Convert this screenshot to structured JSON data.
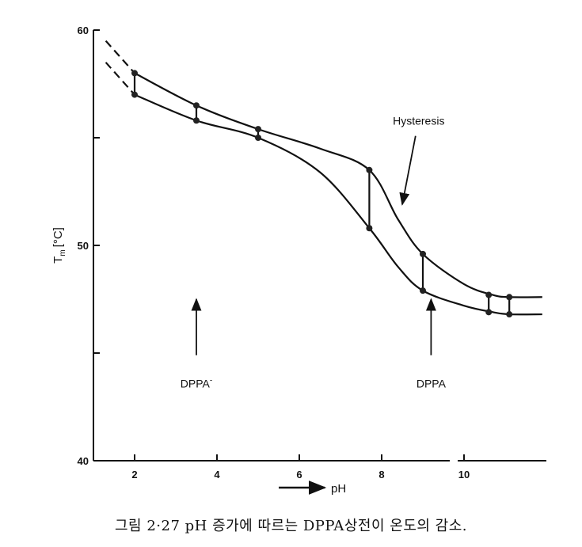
{
  "chart_data": {
    "type": "line",
    "xlabel": "pH",
    "ylabel": "T",
    "ylabel_sub": "m",
    "ylabel_unit": "[°C]",
    "xlim": [
      1,
      12
    ],
    "ylim": [
      40,
      60
    ],
    "x_ticks": [
      2,
      4,
      6,
      8,
      10
    ],
    "y_tick_labels": [
      40,
      50,
      60
    ],
    "y_minor_ticks": [
      45,
      55
    ],
    "grid": false,
    "series": [
      {
        "x": [
          1.3,
          2.0,
          3.5,
          5.0,
          6.5,
          7.7,
          8.4,
          9.0,
          10.0,
          10.7,
          11.1,
          11.9
        ],
        "y": [
          59.5,
          58.0,
          56.5,
          55.4,
          54.5,
          53.5,
          51.2,
          49.6,
          48.2,
          47.7,
          47.6,
          47.6
        ]
      },
      {
        "x": [
          1.3,
          2.0,
          3.5,
          5.0,
          6.5,
          7.7,
          8.4,
          9.0,
          10.0,
          10.7,
          11.1,
          11.9
        ],
        "y": [
          58.5,
          57.0,
          55.8,
          55.0,
          53.4,
          50.8,
          49.0,
          47.9,
          47.2,
          46.9,
          46.8,
          46.8
        ]
      }
    ],
    "hysteresis_pairs": [
      {
        "x": 2.0,
        "upper": 58.0,
        "lower": 57.0
      },
      {
        "x": 3.5,
        "upper": 56.5,
        "lower": 55.8
      },
      {
        "x": 5.0,
        "upper": 55.4,
        "lower": 55.0
      },
      {
        "x": 7.7,
        "upper": 53.5,
        "lower": 50.8
      },
      {
        "x": 9.0,
        "upper": 49.6,
        "lower": 47.9
      },
      {
        "x": 10.6,
        "upper": 47.7,
        "lower": 46.9
      },
      {
        "x": 11.1,
        "upper": 47.6,
        "lower": 46.8
      }
    ],
    "annotations": [
      {
        "text": "Hysteresis",
        "x": 8.9,
        "y": 55.6,
        "arrow_to": [
          8.5,
          51.9
        ]
      },
      {
        "text": "DPPA",
        "sup": "-",
        "x": 3.5,
        "y": 43.4,
        "arrow_from": [
          3.5,
          44.9
        ],
        "arrow_to": [
          3.5,
          47.5
        ]
      },
      {
        "text": "DPPA",
        "sup": "",
        "x": 9.2,
        "y": 43.4,
        "arrow_from": [
          9.2,
          44.9
        ],
        "arrow_to": [
          9.2,
          47.5
        ]
      }
    ]
  },
  "caption": "그림 2·27  pH 증가에 따르는 DPPA상전이 온도의 감소."
}
